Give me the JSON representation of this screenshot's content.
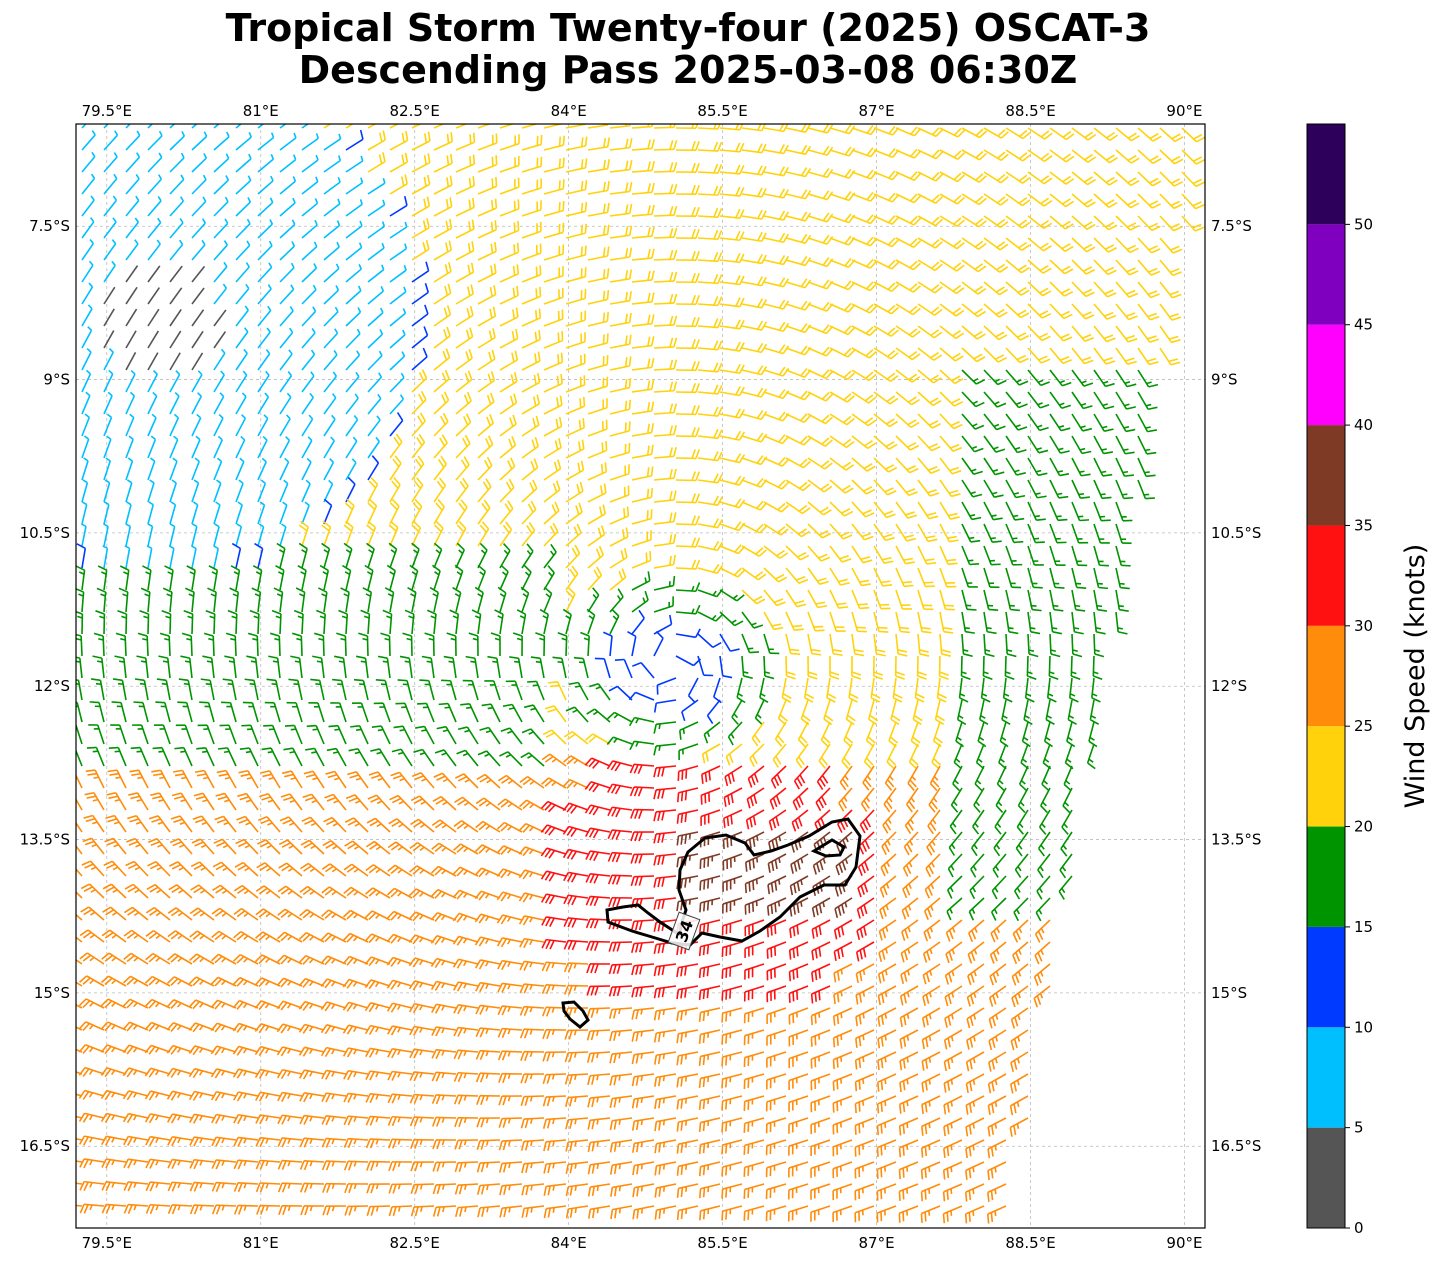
{
  "title": {
    "line1": "Tropical Storm Twenty-four (2025) OSCAT-3",
    "line2": "Descending Pass 2025-03-08 06:30Z"
  },
  "map": {
    "lon_ticks": [
      "79.5°E",
      "81°E",
      "82.5°E",
      "84°E",
      "85.5°E",
      "87°E",
      "88.5°E",
      "90°E"
    ],
    "lat_ticks": [
      "7.5°S",
      "9°S",
      "10.5°S",
      "12°S",
      "13.5°S",
      "15°S",
      "16.5°S"
    ],
    "lon_values": [
      79.5,
      81,
      82.5,
      84,
      85.5,
      87,
      88.5,
      90
    ],
    "lat_values": [
      -7.5,
      -9,
      -10.5,
      -12,
      -13.5,
      -15,
      -16.5
    ],
    "lon_range": [
      79.2,
      90.2
    ],
    "lat_range": [
      -6.5,
      -17.3
    ],
    "storm_center": {
      "lon": 85.0,
      "lat": -11.8
    },
    "calm_center": {
      "lon": 80.0,
      "lat": -8.5
    },
    "contour_label": "34"
  },
  "colorbar": {
    "label": "Wind Speed (knots)",
    "tick_labels": [
      "0",
      "5",
      "10",
      "15",
      "20",
      "25",
      "30",
      "35",
      "40",
      "45",
      "50"
    ],
    "bins": [
      {
        "min": 0,
        "max": 5,
        "color": "#555555"
      },
      {
        "min": 5,
        "max": 10,
        "color": "#00bfff"
      },
      {
        "min": 10,
        "max": 15,
        "color": "#0039ff"
      },
      {
        "min": 15,
        "max": 20,
        "color": "#009400"
      },
      {
        "min": 20,
        "max": 25,
        "color": "#ffd20c"
      },
      {
        "min": 25,
        "max": 30,
        "color": "#ff8c0a"
      },
      {
        "min": 30,
        "max": 35,
        "color": "#ff1111"
      },
      {
        "min": 35,
        "max": 40,
        "color": "#7f3a25"
      },
      {
        "min": 40,
        "max": 45,
        "color": "#ff00ff"
      },
      {
        "min": 45,
        "max": 50,
        "color": "#8000bf"
      },
      {
        "min": 50,
        "max": 55,
        "color": "#2d005c"
      }
    ]
  }
}
